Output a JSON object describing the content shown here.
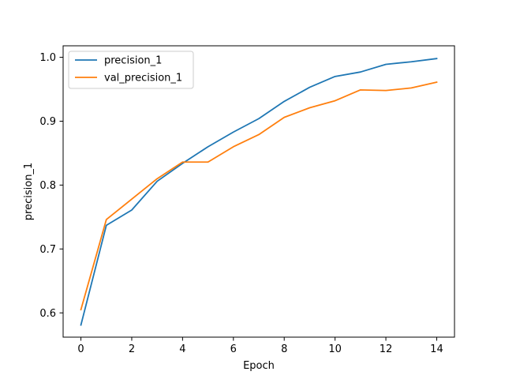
{
  "chart_data": {
    "type": "line",
    "title": "",
    "xlabel": "Epoch",
    "ylabel": "precision_1",
    "xlim": [
      -0.7,
      14.7
    ],
    "ylim": [
      0.562,
      1.018
    ],
    "xticks": [
      0,
      2,
      4,
      6,
      8,
      10,
      12,
      14
    ],
    "yticks": [
      0.6,
      0.7,
      0.8,
      0.9,
      1.0
    ],
    "xtick_labels": [
      "0",
      "2",
      "4",
      "6",
      "8",
      "10",
      "12",
      "14"
    ],
    "ytick_labels": [
      "0.6",
      "0.7",
      "0.8",
      "0.9",
      "1.0"
    ],
    "grid": false,
    "legend": "top-left",
    "x": [
      0,
      1,
      2,
      3,
      4,
      5,
      6,
      7,
      8,
      9,
      10,
      11,
      12,
      13,
      14
    ],
    "series": [
      {
        "name": "precision_1",
        "color": "#1f77b4",
        "values": [
          0.581,
          0.737,
          0.761,
          0.806,
          0.834,
          0.86,
          0.883,
          0.904,
          0.931,
          0.953,
          0.97,
          0.977,
          0.989,
          0.993,
          0.998
        ]
      },
      {
        "name": "val_precision_1",
        "color": "#ff7f0e",
        "values": [
          0.605,
          0.746,
          0.778,
          0.81,
          0.836,
          0.836,
          0.86,
          0.879,
          0.906,
          0.921,
          0.932,
          0.949,
          0.948,
          0.952,
          0.961
        ]
      }
    ]
  }
}
